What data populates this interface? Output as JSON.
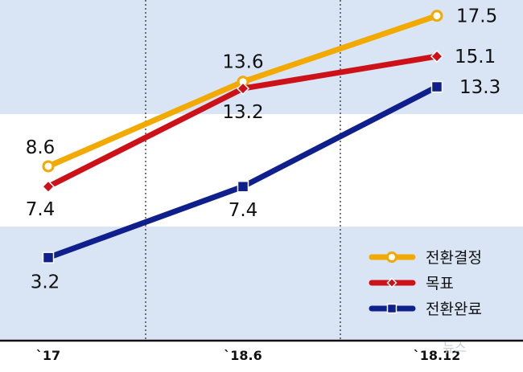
{
  "chart_data": {
    "type": "line",
    "categories": [
      "`17",
      "`18.6",
      "`18.12"
    ],
    "series": [
      {
        "name": "전환결정",
        "values": [
          8.6,
          13.6,
          17.5
        ],
        "color": "#f2a900",
        "marker": "circle"
      },
      {
        "name": "목표",
        "values": [
          7.4,
          13.2,
          15.1
        ],
        "color": "#cc1119",
        "marker": "diamond"
      },
      {
        "name": "전환완료",
        "values": [
          3.2,
          7.4,
          13.3
        ],
        "color": "#0f1f8c",
        "marker": "square"
      }
    ],
    "data_labels": true,
    "legend_position": "bottom-right",
    "background_bands_color": "#d9e4f4",
    "grid": "vertical dotted"
  },
  "watermark": "뉴스"
}
